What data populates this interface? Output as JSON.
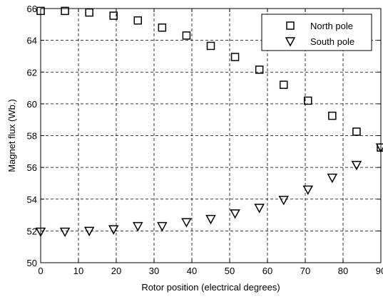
{
  "chart_data": {
    "type": "scatter",
    "title": "",
    "xlabel": "Rotor position (electrical degrees)",
    "ylabel": "Magnet flux (Wb.)",
    "xlim": [
      0,
      90
    ],
    "ylim": [
      50,
      66
    ],
    "x_ticks": [
      "0",
      "10",
      "20",
      "30",
      "40",
      "50",
      "60",
      "70",
      "80",
      "90"
    ],
    "y_ticks": [
      "50",
      "52",
      "54",
      "56",
      "58",
      "60",
      "62",
      "64",
      "66"
    ],
    "grid": true,
    "grid_style": "dashed",
    "legend_position": "top-right",
    "series": [
      {
        "name": "North pole",
        "marker": "square",
        "color": "#000000",
        "points": [
          [
            0,
            65.85
          ],
          [
            6.43,
            65.85
          ],
          [
            12.86,
            65.75
          ],
          [
            19.29,
            65.55
          ],
          [
            25.71,
            65.25
          ],
          [
            32.14,
            64.8
          ],
          [
            38.57,
            64.3
          ],
          [
            45,
            63.65
          ],
          [
            51.43,
            62.95
          ],
          [
            57.86,
            62.15
          ],
          [
            64.29,
            61.2
          ],
          [
            70.71,
            60.2
          ],
          [
            77.14,
            59.25
          ],
          [
            83.57,
            58.25
          ],
          [
            90,
            57.25
          ]
        ]
      },
      {
        "name": "South pole",
        "marker": "triangle-down",
        "color": "#000000",
        "points": [
          [
            0,
            51.95
          ],
          [
            6.43,
            51.95
          ],
          [
            12.86,
            52.0
          ],
          [
            19.29,
            52.1
          ],
          [
            25.71,
            52.3
          ],
          [
            32.14,
            52.3
          ],
          [
            38.57,
            52.55
          ],
          [
            45,
            52.75
          ],
          [
            51.43,
            53.1
          ],
          [
            57.86,
            53.45
          ],
          [
            64.29,
            53.95
          ],
          [
            70.71,
            54.6
          ],
          [
            77.14,
            55.35
          ],
          [
            83.57,
            56.15
          ],
          [
            90,
            57.25
          ]
        ]
      }
    ]
  }
}
